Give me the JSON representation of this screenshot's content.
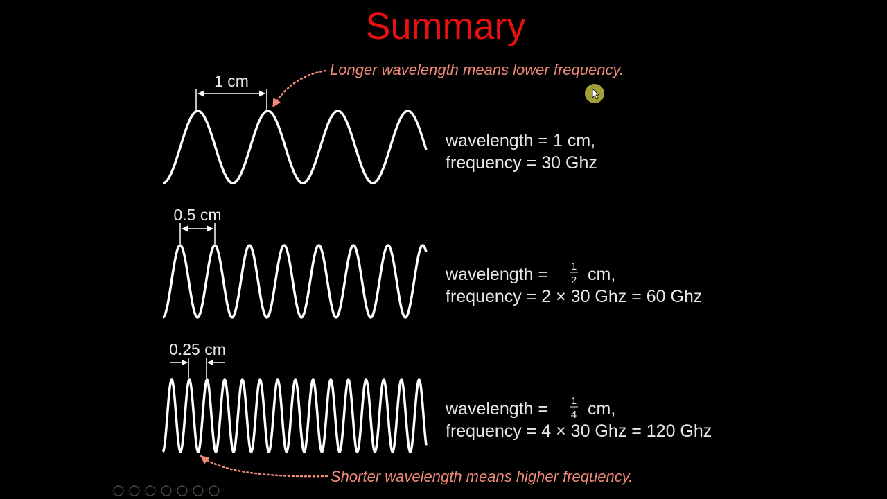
{
  "slide": {
    "title": "Summary",
    "annotation_top": "Longer wavelength means lower frequency.",
    "annotation_bottom": "Shorter wavelength means higher frequency.",
    "rows": [
      {
        "dimension": "1 cm",
        "wavelength": "wavelength = 1 cm,",
        "frequency": "frequency = 30 Ghz"
      },
      {
        "dimension": "0.5 cm",
        "wavelength_prefix": "wavelength =",
        "numerator": "1",
        "denominator": "2",
        "wavelength_suffix": "cm,",
        "frequency": "frequency = 2 × 30 Ghz = 60 Ghz"
      },
      {
        "dimension": "0.25 cm",
        "wavelength_prefix": "wavelength =",
        "numerator": "1",
        "denominator": "4",
        "wavelength_suffix": "cm,",
        "frequency": "frequency = 4 × 30 Ghz = 120 Ghz"
      }
    ]
  }
}
